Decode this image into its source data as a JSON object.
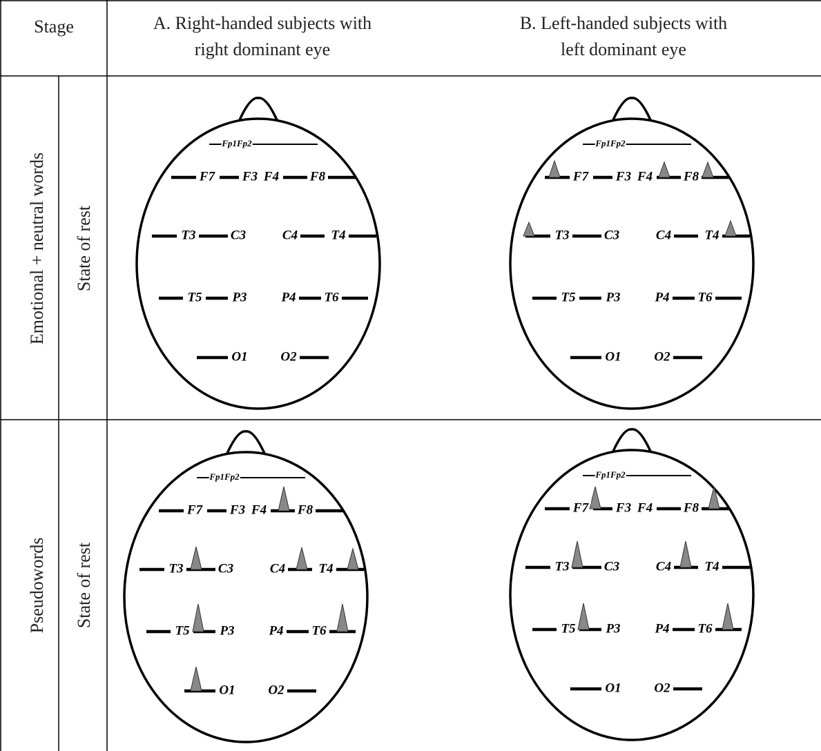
{
  "header": {
    "stage": "Stage",
    "col_a": [
      "A. Right-handed subjects with",
      "right dominant eye"
    ],
    "col_b": [
      "B. Left-handed subjects with",
      "left dominant eye"
    ]
  },
  "rows": [
    {
      "stage": "Emotional + neutral words",
      "condition": "State of rest"
    },
    {
      "stage": "Pseudowords",
      "condition": "State of rest"
    }
  ],
  "electrodes": [
    "Fp1Fp2",
    "F7",
    "F3",
    "F4",
    "F8",
    "T3",
    "C3",
    "C4",
    "T4",
    "T5",
    "P3",
    "P4",
    "T6",
    "O1",
    "O2"
  ]
}
